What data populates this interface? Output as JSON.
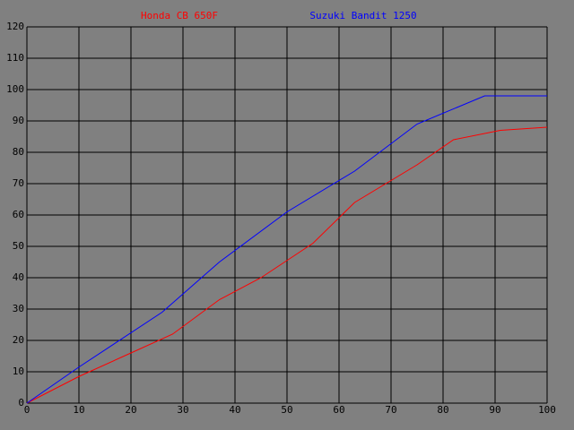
{
  "chart_data": {
    "type": "line",
    "series": [
      {
        "name": "Honda CB 650F",
        "color": "#ff0000",
        "x": [
          0,
          10,
          20,
          28,
          37,
          45,
          55,
          63,
          75,
          82,
          91,
          100
        ],
        "values": [
          0,
          8.5,
          16,
          22,
          33,
          40,
          51,
          64,
          76,
          84,
          87,
          88
        ]
      },
      {
        "name": "Suzuki Bandit 1250",
        "color": "#0000ff",
        "x": [
          0,
          10,
          26,
          37,
          50,
          63,
          75,
          88,
          100
        ],
        "values": [
          0,
          11.5,
          29,
          45,
          61,
          74,
          89,
          98,
          98
        ]
      }
    ],
    "xlim": [
      0,
      100
    ],
    "xticks": [
      0,
      10,
      20,
      30,
      40,
      50,
      60,
      70,
      80,
      90,
      100
    ],
    "ylim": [
      0,
      120
    ],
    "yticks": [
      0,
      10,
      20,
      30,
      40,
      50,
      60,
      70,
      80,
      90,
      100,
      110,
      120
    ],
    "grid": true,
    "grid_color": "#000000",
    "background": "#808080"
  }
}
